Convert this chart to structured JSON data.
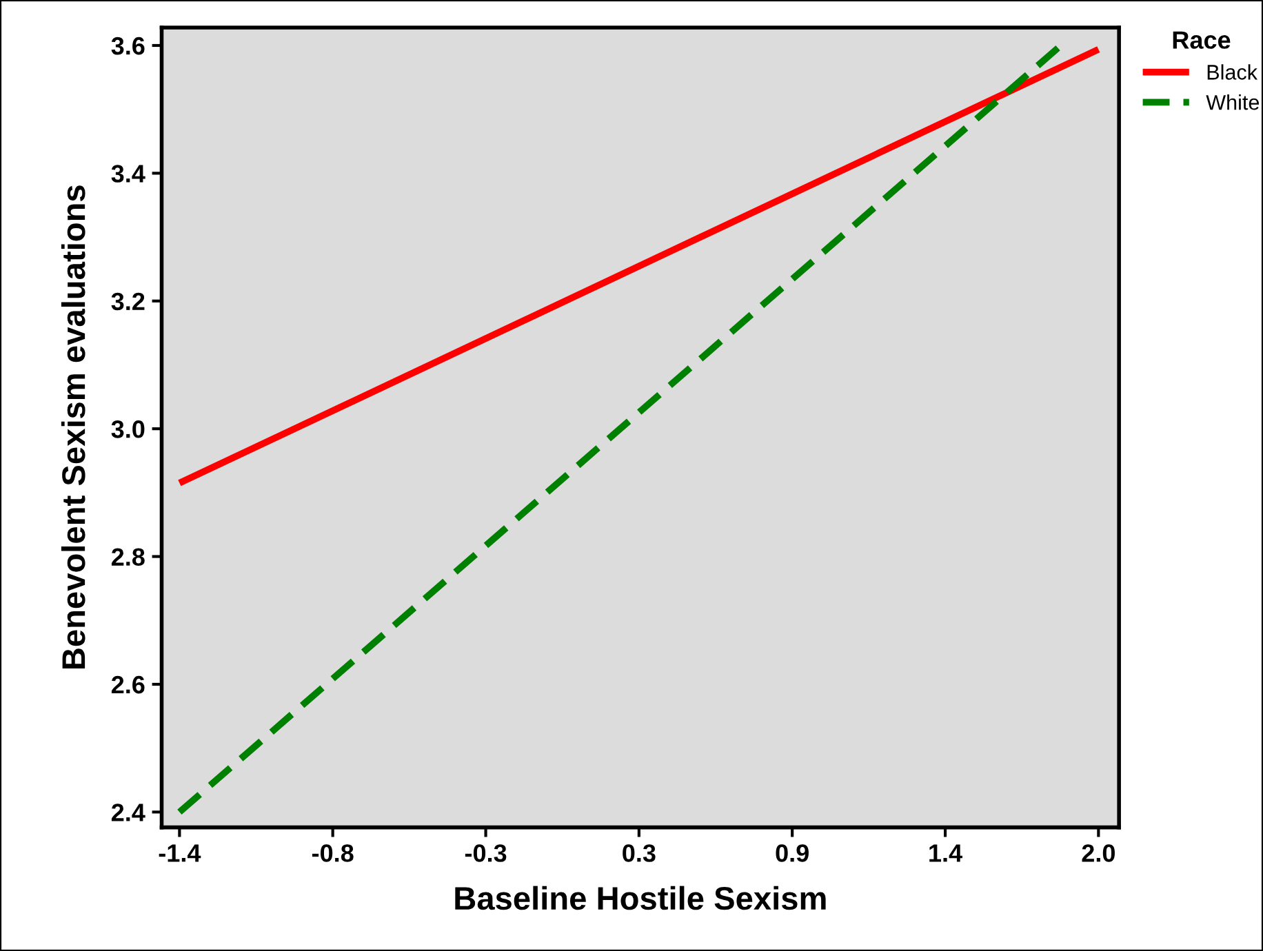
{
  "chart_data": {
    "type": "line",
    "xlabel": "Baseline Hostile Sexism",
    "ylabel": "Benevolent Sexism evaluations",
    "legend_title": "Race",
    "legend": "top right",
    "grid": false,
    "marker": "none",
    "xlim": [
      -1.466,
      2.076
    ],
    "ylim": [
      2.376,
      3.628
    ],
    "xticks": [
      {
        "value": -1.4,
        "label": "-1.4"
      },
      {
        "value": -0.833,
        "label": "-0.8"
      },
      {
        "value": -0.267,
        "label": "-0.3"
      },
      {
        "value": 0.3,
        "label": "0.3"
      },
      {
        "value": 0.867,
        "label": "0.9"
      },
      {
        "value": 1.433,
        "label": "1.4"
      },
      {
        "value": 2.0,
        "label": "2.0"
      }
    ],
    "yticks": [
      {
        "value": 2.4,
        "label": "2.4"
      },
      {
        "value": 2.6,
        "label": "2.6"
      },
      {
        "value": 2.8,
        "label": "2.8"
      },
      {
        "value": 3.0,
        "label": "3.0"
      },
      {
        "value": 3.2,
        "label": "3.2"
      },
      {
        "value": 3.4,
        "label": "3.4"
      },
      {
        "value": 3.6,
        "label": "3.6"
      }
    ],
    "series": [
      {
        "name": "Black",
        "color": "#ff0000",
        "line_style": "solid",
        "x": [
          -1.4,
          2.0
        ],
        "values": [
          2.915,
          3.594
        ]
      },
      {
        "name": "White",
        "color": "#008000",
        "line_style": "dashed",
        "x": [
          -1.4,
          1.85
        ],
        "values": [
          2.4,
          3.596
        ]
      }
    ]
  }
}
